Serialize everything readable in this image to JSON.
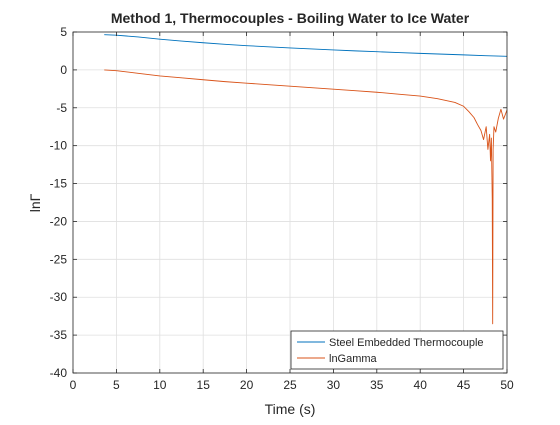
{
  "chart_data": {
    "type": "line",
    "title": "Method 1, Thermocouples - Boiling Water to Ice Water",
    "xlabel": "Time (s)",
    "ylabel": "lnΓ",
    "xlim": [
      0,
      50
    ],
    "ylim": [
      -40,
      5
    ],
    "xticks": [
      0,
      5,
      10,
      15,
      20,
      25,
      30,
      35,
      40,
      45,
      50
    ],
    "yticks": [
      5,
      0,
      -5,
      -10,
      -15,
      -20,
      -25,
      -30,
      -35,
      -40
    ],
    "grid": true,
    "legend_position": "bottom-right",
    "series": [
      {
        "name": "Steel Embedded Thermocouple",
        "color": "#0072BD",
        "x": [
          3.6,
          5,
          7.5,
          10,
          12.5,
          15,
          17.5,
          20,
          22.5,
          25,
          27.5,
          30,
          32.5,
          35,
          37.5,
          40,
          42.5,
          45,
          47.5,
          50
        ],
        "y": [
          4.65,
          4.58,
          4.35,
          4.05,
          3.8,
          3.58,
          3.38,
          3.2,
          3.05,
          2.9,
          2.76,
          2.63,
          2.51,
          2.4,
          2.29,
          2.18,
          2.08,
          1.98,
          1.88,
          1.79
        ]
      },
      {
        "name": "lnGamma",
        "color": "#D95319",
        "x": [
          3.6,
          5,
          7.5,
          10,
          12.5,
          15,
          17.5,
          20,
          22.5,
          25,
          27.5,
          30,
          32.5,
          35,
          37.5,
          40,
          42,
          44,
          45,
          45.6,
          46.2,
          46.6,
          47,
          47.3,
          47.6,
          47.8,
          48,
          48.1,
          48.2,
          48.3,
          48.35,
          48.4,
          48.5,
          48.7,
          49,
          49.3,
          49.6,
          50
        ],
        "y": [
          0.0,
          -0.1,
          -0.45,
          -0.8,
          -1.05,
          -1.3,
          -1.55,
          -1.75,
          -1.95,
          -2.15,
          -2.35,
          -2.55,
          -2.75,
          -2.95,
          -3.2,
          -3.45,
          -3.8,
          -4.3,
          -4.8,
          -5.5,
          -6.3,
          -7.2,
          -8.0,
          -9.2,
          -7.5,
          -10.5,
          -8.5,
          -12.0,
          -9.0,
          -17.0,
          -33.5,
          -10.5,
          -7.5,
          -8.2,
          -6.4,
          -5.2,
          -6.5,
          -5.3
        ]
      }
    ]
  }
}
